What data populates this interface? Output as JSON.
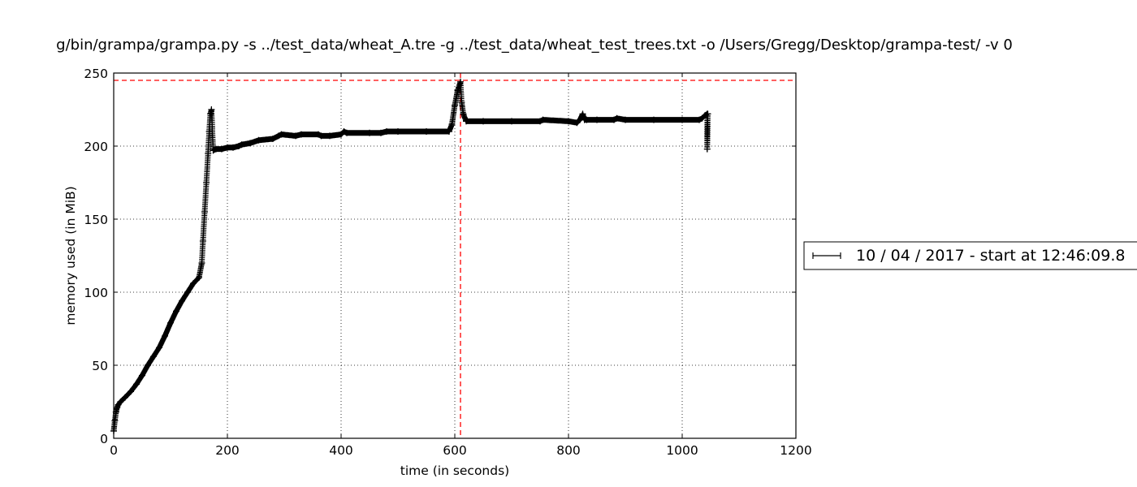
{
  "chart_data": {
    "type": "line",
    "title": "g/bin/grampa/grampa.py -s ../test_data/wheat_A.tre -g ../test_data/wheat_test_trees.txt -o /Users/Gregg/Desktop/grampa-test/ -v 0",
    "xlabel": "time (in seconds)",
    "ylabel": "memory used (in MiB)",
    "xlim": [
      0,
      1200
    ],
    "ylim": [
      0,
      250
    ],
    "xticks": [
      "0",
      "200",
      "400",
      "600",
      "800",
      "1000",
      "1200"
    ],
    "yticks": [
      "0",
      "50",
      "100",
      "150",
      "200",
      "250"
    ],
    "grid": true,
    "grid_style": "dotted",
    "legend_position": "right-outside",
    "series": [
      {
        "name": "10 / 04 / 2017 - start at 12:46:09.8",
        "color": "#000000",
        "marker": "plus",
        "x": [
          0,
          2,
          4,
          6,
          8,
          12,
          20,
          30,
          40,
          50,
          60,
          70,
          80,
          90,
          100,
          110,
          120,
          130,
          140,
          150,
          155,
          157,
          160,
          163,
          166,
          168,
          170,
          172,
          175,
          180,
          190,
          200,
          210,
          220,
          225,
          240,
          255,
          280,
          290,
          295,
          320,
          330,
          360,
          365,
          380,
          400,
          405,
          410,
          450,
          470,
          480,
          500,
          550,
          590,
          595,
          600,
          605,
          610,
          612,
          615,
          620,
          650,
          700,
          750,
          755,
          800,
          815,
          820,
          825,
          828,
          832,
          850,
          880,
          885,
          900,
          950,
          1000,
          1030,
          1035,
          1040,
          1044,
          1044,
          1045
        ],
        "y": [
          5,
          12,
          18,
          21,
          23,
          25,
          28,
          32,
          37,
          43,
          50,
          56,
          62,
          70,
          79,
          87,
          94,
          100,
          106,
          110,
          120,
          135,
          155,
          175,
          195,
          210,
          222,
          225,
          197,
          198,
          198,
          199,
          199,
          200,
          201,
          202,
          204,
          205,
          207,
          208,
          207,
          208,
          208,
          207,
          207,
          208,
          210,
          209,
          209,
          209,
          210,
          210,
          210,
          210,
          215,
          228,
          238,
          244,
          230,
          222,
          217,
          217,
          217,
          217,
          218,
          217,
          216,
          218,
          222,
          218,
          218,
          218,
          218,
          219,
          218,
          218,
          218,
          218,
          219,
          221,
          222,
          198,
          222
        ]
      }
    ],
    "reference_lines": {
      "color": "#ff0000",
      "style": "dashed",
      "horizontal_y": 245,
      "vertical_x": 610
    }
  }
}
